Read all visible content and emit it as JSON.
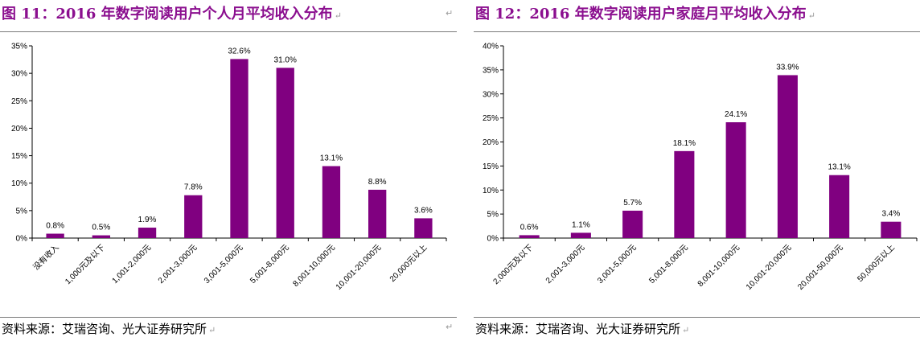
{
  "left": {
    "title": "图 11：2016 年数字阅读用户个人月平均收入分布",
    "source": "资料来源：艾瑞咨询、光大证券研究所",
    "chart_data": {
      "type": "bar",
      "title": "",
      "xlabel": "",
      "ylabel": "",
      "categories": [
        "没有收入",
        "1,000元及以下",
        "1,001-2,000元",
        "2,001-3,000元",
        "3,001-5,000元",
        "5,001-8,000元",
        "8,001-10,000元",
        "10,001-20,000元",
        "20,000元以上"
      ],
      "values": [
        0.8,
        0.5,
        1.9,
        7.8,
        32.6,
        31.0,
        13.1,
        8.8,
        3.6
      ],
      "value_labels": [
        "0.8%",
        "0.5%",
        "1.9%",
        "7.8%",
        "32.6%",
        "31.0%",
        "13.1%",
        "8.8%",
        "3.6%"
      ],
      "ylim": [
        0,
        35
      ],
      "yticks": [
        "0%",
        "5%",
        "10%",
        "15%",
        "20%",
        "25%",
        "30%",
        "35%"
      ],
      "grid": false,
      "bar_color": "#800080"
    }
  },
  "right": {
    "title": "图 12：2016 年数字阅读用户家庭月平均收入分布",
    "source": "资料来源：艾瑞咨询、光大证券研究所",
    "chart_data": {
      "type": "bar",
      "title": "",
      "xlabel": "",
      "ylabel": "",
      "categories": [
        "2,000元及以下",
        "2,001-3,000元",
        "3,001-5,000元",
        "5,001-8,000元",
        "8,001-10,000元",
        "10,001-20,000元",
        "20,001-50,000元",
        "50,000元以上"
      ],
      "values": [
        0.6,
        1.1,
        5.7,
        18.1,
        24.1,
        33.9,
        13.1,
        3.4
      ],
      "value_labels": [
        "0.6%",
        "1.1%",
        "5.7%",
        "18.1%",
        "24.1%",
        "33.9%",
        "13.1%",
        "3.4%"
      ],
      "ylim": [
        0,
        40
      ],
      "yticks": [
        "0%",
        "5%",
        "10%",
        "15%",
        "20%",
        "25%",
        "30%",
        "35%",
        "40%"
      ],
      "grid": false,
      "bar_color": "#800080"
    }
  },
  "colors": {
    "title": "#8b0f8f",
    "bar": "#800080",
    "rule": "#7a7a7a"
  }
}
